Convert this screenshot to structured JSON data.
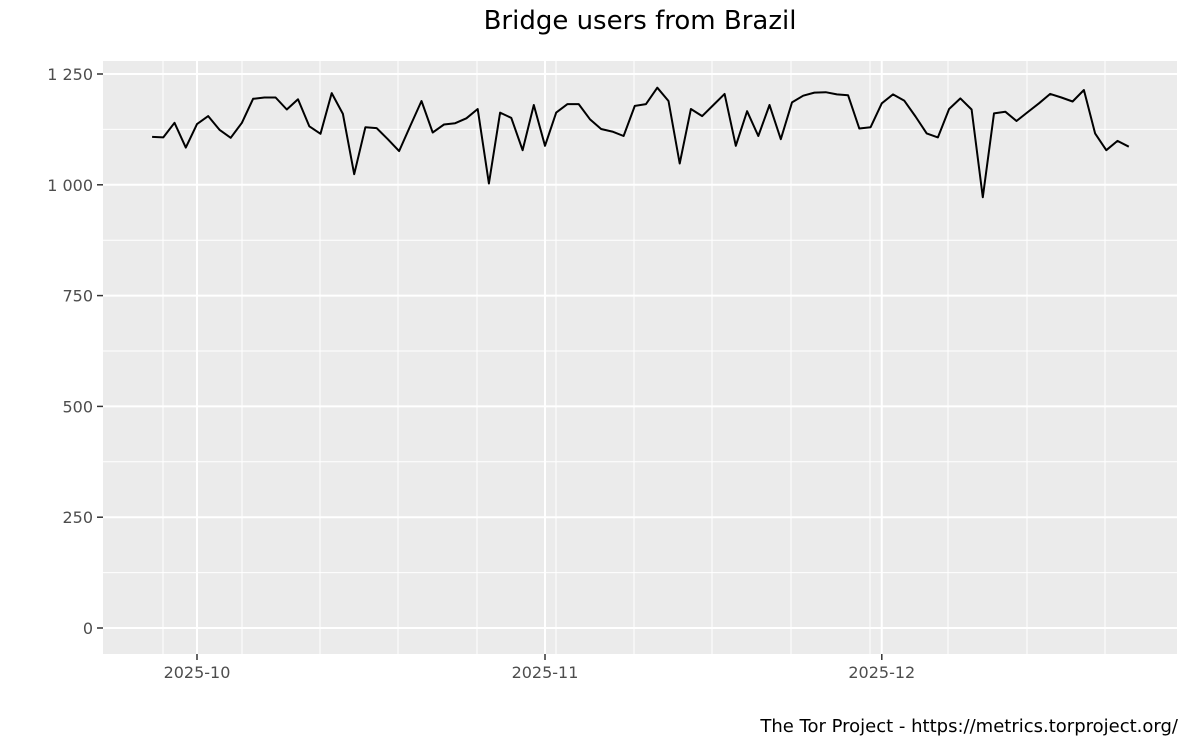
{
  "chart_data": {
    "type": "line",
    "title": "Bridge users from Brazil",
    "xlabel": "",
    "ylabel": "",
    "caption": "The Tor Project - https://metrics.torproject.org/",
    "ylim": [
      0,
      1300
    ],
    "yticks": [
      0,
      250,
      500,
      750,
      1000,
      1250
    ],
    "ytick_labels": [
      "0",
      "250",
      "500",
      "750",
      "1 000",
      "1 250"
    ],
    "xtick_labels": [
      "2025-10",
      "2025-11",
      "2025-12"
    ],
    "xticks": [
      "2025-10-01",
      "2025-11-01",
      "2025-12-01"
    ],
    "x_start": "2025-09-27",
    "x_end": "2025-12-23",
    "grid": true,
    "legend": "none",
    "series": [
      {
        "name": "Bridge users",
        "color": "#000000",
        "values": [
          1108,
          1107,
          1140,
          1084,
          1137,
          1155,
          1124,
          1106,
          1140,
          1194,
          1197,
          1197,
          1170,
          1193,
          1132,
          1115,
          1207,
          1160,
          1024,
          1130,
          1128,
          1103,
          1076,
          1133,
          1189,
          1118,
          1136,
          1139,
          1150,
          1171,
          1003,
          1163,
          1151,
          1078,
          1180,
          1088,
          1163,
          1182,
          1182,
          1148,
          1126,
          1120,
          1110,
          1178,
          1182,
          1219,
          1189,
          1048,
          1171,
          1155,
          1180,
          1205,
          1088,
          1166,
          1110,
          1180,
          1103,
          1186,
          1201,
          1208,
          1209,
          1204,
          1202,
          1127,
          1130,
          1184,
          1204,
          1190,
          1154,
          1116,
          1107,
          1171,
          1195,
          1170,
          972,
          1161,
          1165,
          1144,
          1164,
          1184,
          1205,
          1197,
          1188,
          1214,
          1116,
          1078,
          1099,
          1086
        ]
      }
    ]
  },
  "colors": {
    "panel_bg": "#ebebeb",
    "grid": "#ffffff",
    "line": "#000000",
    "tick_text": "#4d4d4d"
  }
}
